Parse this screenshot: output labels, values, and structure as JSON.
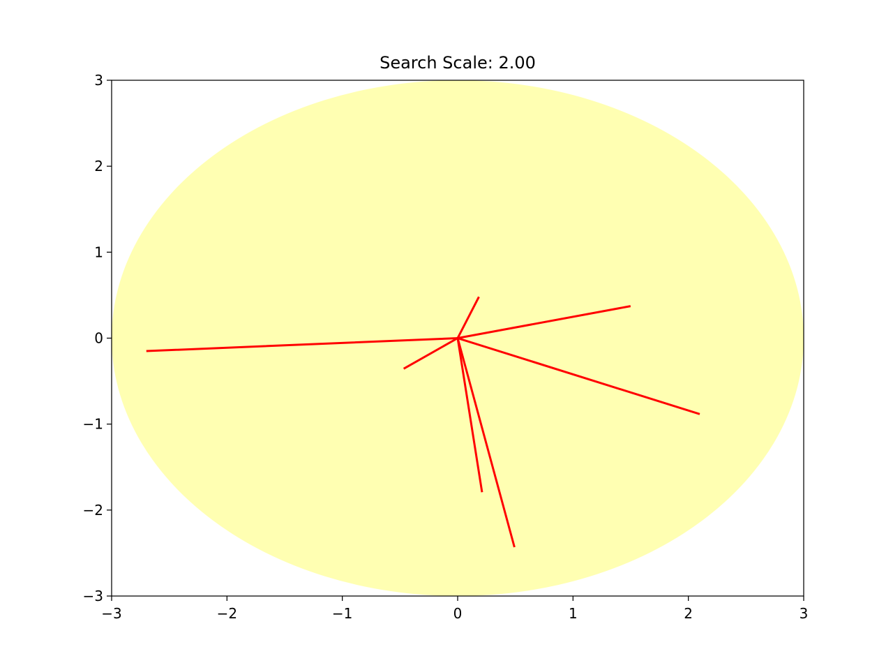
{
  "chart_data": {
    "type": "line",
    "title": "Search Scale: 2.00",
    "xlabel": "",
    "ylabel": "",
    "xlim": [
      -3,
      3
    ],
    "ylim": [
      -3,
      3
    ],
    "xticks": [
      -3,
      -2,
      -1,
      0,
      1,
      2,
      3
    ],
    "yticks": [
      -3,
      -2,
      -1,
      0,
      1,
      2,
      3
    ],
    "xtick_labels": [
      "−3",
      "−2",
      "−1",
      "0",
      "1",
      "2",
      "3"
    ],
    "ytick_labels": [
      "−3",
      "−2",
      "−1",
      "0",
      "1",
      "2",
      "3"
    ],
    "grid": false,
    "legend": "none",
    "search_region": {
      "shape": "circle",
      "center": [
        0,
        0
      ],
      "radius": 3.0,
      "color": "#ffff66",
      "opacity": 0.5
    },
    "origin": [
      0,
      0
    ],
    "segments": [
      {
        "x": [
          0,
          0.18
        ],
        "y": [
          0,
          0.47
        ]
      },
      {
        "x": [
          0,
          -0.46
        ],
        "y": [
          0,
          -0.35
        ]
      },
      {
        "x": [
          0,
          1.49
        ],
        "y": [
          0,
          0.37
        ]
      },
      {
        "x": [
          0,
          -2.69
        ],
        "y": [
          0,
          -0.15
        ]
      },
      {
        "x": [
          0,
          2.09
        ],
        "y": [
          0,
          -0.88
        ]
      },
      {
        "x": [
          0,
          0.21
        ],
        "y": [
          0,
          -1.78
        ]
      },
      {
        "x": [
          0,
          0.49
        ],
        "y": [
          0,
          -2.42
        ]
      }
    ],
    "line_color": "#ff0000"
  }
}
